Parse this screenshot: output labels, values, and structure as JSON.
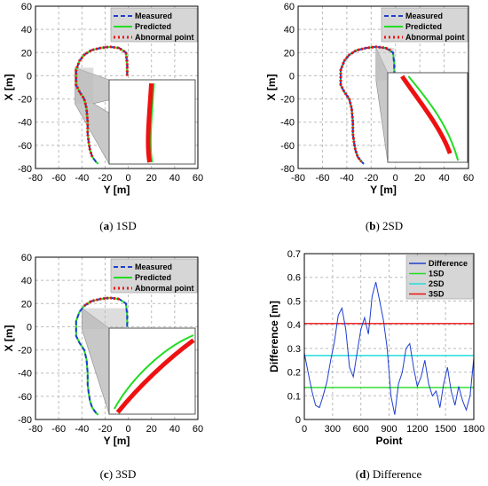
{
  "chart_data": [
    {
      "type": "line",
      "caption": {
        "letter": "a",
        "text": "1SD"
      },
      "xlabel": "Y [m]",
      "ylabel": "X [m]",
      "xlim": [
        -80,
        60
      ],
      "ylim": [
        -80,
        60
      ],
      "xticks": [
        -80,
        -60,
        -40,
        -20,
        0,
        20,
        40,
        60
      ],
      "yticks": [
        60,
        40,
        20,
        0,
        -20,
        -40,
        -60,
        -80
      ],
      "grid": true,
      "legend_position": "top-right",
      "legend": [
        "Measured",
        "Predicted",
        "Abnormal point"
      ],
      "colors": {
        "measured": "#1f3fcf",
        "predicted": "#22dd22",
        "abnormal": "#ee1111"
      },
      "series": [
        {
          "name": "Measured",
          "style": "dashed",
          "x": [
            -1,
            -1,
            -2,
            -8,
            -16,
            -24,
            -32,
            -38,
            -42,
            -45,
            -45,
            -42,
            -38,
            -36,
            -35,
            -35,
            -34,
            -33,
            -31,
            -28,
            -26
          ],
          "y": [
            0,
            10,
            20,
            24,
            25,
            24,
            22,
            18,
            13,
            5,
            -8,
            -14,
            -20,
            -28,
            -40,
            -50,
            -58,
            -64,
            -70,
            -74,
            -76
          ]
        },
        {
          "name": "Predicted",
          "x": [
            -1,
            -1,
            -2,
            -8,
            -16,
            -24,
            -32,
            -38,
            -42,
            -45,
            -45,
            -42,
            -38,
            -36,
            -35,
            -35,
            -34,
            -33,
            -31,
            -28,
            -26
          ],
          "y": [
            0,
            10,
            20,
            24,
            25,
            24,
            22,
            18,
            13,
            5,
            -8,
            -14,
            -20,
            -28,
            -40,
            -50,
            -58,
            -64,
            -70,
            -74,
            -76
          ]
        },
        {
          "name": "Abnormal point",
          "style": "dotted",
          "x": [
            -1,
            -1,
            -2,
            -8,
            -16,
            -24,
            -32,
            -38,
            -42,
            -45,
            -45,
            -42,
            -38,
            -36,
            -35,
            -35,
            -34,
            -33,
            -31
          ],
          "y": [
            0,
            10,
            20,
            24,
            25,
            24,
            22,
            18,
            13,
            5,
            -8,
            -14,
            -20,
            -28,
            -40,
            -50,
            -58,
            -64,
            -70
          ]
        }
      ]
    },
    {
      "type": "line",
      "caption": {
        "letter": "b",
        "text": "2SD"
      },
      "xlabel": "Y [m]",
      "ylabel": "X [m]",
      "xlim": [
        -80,
        60
      ],
      "ylim": [
        -80,
        60
      ],
      "xticks": [
        -80,
        -60,
        -40,
        -20,
        0,
        20,
        40,
        60
      ],
      "yticks": [
        60,
        40,
        20,
        0,
        -20,
        -40,
        -60,
        -80
      ],
      "grid": true,
      "legend_position": "top-right",
      "legend": [
        "Measured",
        "Predicted",
        "Abnormal point"
      ],
      "colors": {
        "measured": "#1f3fcf",
        "predicted": "#22dd22",
        "abnormal": "#ee1111"
      },
      "series": [
        {
          "name": "Measured",
          "style": "dashed",
          "x": [
            -1,
            -1,
            -2,
            -8,
            -16,
            -24,
            -32,
            -38,
            -42,
            -45,
            -45,
            -42,
            -38,
            -36,
            -35,
            -35,
            -34,
            -33,
            -31,
            -28,
            -26
          ],
          "y": [
            0,
            10,
            20,
            24,
            25,
            24,
            22,
            18,
            13,
            5,
            -8,
            -14,
            -20,
            -28,
            -40,
            -50,
            -58,
            -64,
            -70,
            -74,
            -76
          ]
        },
        {
          "name": "Predicted",
          "x": [
            -1,
            -1,
            -2,
            -8,
            -16,
            -24,
            -32,
            -38,
            -42,
            -45,
            -45,
            -42,
            -38,
            -36,
            -35,
            -35,
            -34,
            -33,
            -31,
            -28,
            -26
          ],
          "y": [
            0,
            10,
            20,
            24,
            25,
            24,
            22,
            18,
            13,
            5,
            -8,
            -14,
            -20,
            -28,
            -40,
            -50,
            -58,
            -64,
            -70,
            -74,
            -76
          ]
        },
        {
          "name": "Abnormal point",
          "style": "dotted",
          "x": [
            -4,
            -8,
            -16,
            -24,
            -32,
            -38,
            -42,
            -45,
            -45,
            -42,
            -38,
            -36,
            -35,
            -35,
            -34,
            -33,
            -31,
            -28
          ],
          "y": [
            22,
            24,
            25,
            24,
            22,
            18,
            13,
            5,
            -8,
            -14,
            -20,
            -28,
            -40,
            -50,
            -58,
            -64,
            -70,
            -74
          ]
        }
      ]
    },
    {
      "type": "line",
      "caption": {
        "letter": "c",
        "text": "3SD"
      },
      "xlabel": "Y [m]",
      "ylabel": "X [m]",
      "xlim": [
        -80,
        60
      ],
      "ylim": [
        -80,
        60
      ],
      "xticks": [
        -80,
        -60,
        -40,
        -20,
        0,
        20,
        40,
        60
      ],
      "yticks": [
        60,
        40,
        20,
        0,
        -20,
        -40,
        -60,
        -80
      ],
      "grid": true,
      "legend_position": "top-right",
      "legend": [
        "Measured",
        "Predicted",
        "Abnormal point"
      ],
      "colors": {
        "measured": "#1f3fcf",
        "predicted": "#22dd22",
        "abnormal": "#ee1111"
      },
      "series": [
        {
          "name": "Measured",
          "style": "dashed",
          "x": [
            -1,
            -1,
            -2,
            -8,
            -16,
            -24,
            -32,
            -38,
            -42,
            -45,
            -45,
            -42,
            -38,
            -36,
            -35,
            -35,
            -34,
            -33,
            -31,
            -28,
            -26
          ],
          "y": [
            0,
            10,
            20,
            24,
            25,
            24,
            22,
            18,
            13,
            5,
            -8,
            -14,
            -20,
            -28,
            -40,
            -50,
            -58,
            -64,
            -70,
            -74,
            -76
          ]
        },
        {
          "name": "Predicted",
          "x": [
            -1,
            -1,
            -2,
            -8,
            -16,
            -24,
            -32,
            -38,
            -42,
            -45,
            -45,
            -42,
            -38,
            -36,
            -35,
            -35,
            -34,
            -33,
            -31,
            -28,
            -26
          ],
          "y": [
            0,
            10,
            20,
            24,
            25,
            24,
            22,
            18,
            13,
            5,
            -8,
            -14,
            -20,
            -28,
            -40,
            -50,
            -58,
            -64,
            -70,
            -74,
            -76
          ]
        },
        {
          "name": "Abnormal point",
          "style": "dotted",
          "x": [
            -8,
            -16,
            -24,
            -32,
            -38
          ],
          "y": [
            24,
            25,
            24,
            22,
            18
          ]
        }
      ]
    },
    {
      "type": "line",
      "caption": {
        "letter": "d",
        "text": "Difference"
      },
      "xlabel": "Point",
      "ylabel": "Difference [m]",
      "xlim": [
        0,
        1800
      ],
      "ylim": [
        0,
        0.7
      ],
      "xticks": [
        0,
        300,
        600,
        900,
        1200,
        1500,
        1800
      ],
      "yticks": [
        0.7,
        0.6,
        0.5,
        0.4,
        0.3,
        0.2,
        0.1,
        0
      ],
      "grid": true,
      "legend_position": "top-right",
      "legend": [
        "Difference",
        "1SD",
        "2SD",
        "3SD"
      ],
      "colors": {
        "difference": "#1f3fcf",
        "1SD": "#22dd22",
        "2SD": "#22dddd",
        "3SD": "#ee1111"
      },
      "series": [
        {
          "name": "Difference",
          "x": [
            0,
            40,
            80,
            120,
            160,
            200,
            240,
            280,
            320,
            360,
            400,
            440,
            480,
            520,
            560,
            600,
            640,
            680,
            720,
            760,
            800,
            840,
            880,
            920,
            960,
            1000,
            1040,
            1080,
            1120,
            1160,
            1200,
            1240,
            1280,
            1320,
            1360,
            1400,
            1440,
            1480,
            1520,
            1560,
            1600,
            1640,
            1680,
            1720,
            1760,
            1800
          ],
          "y": [
            0.28,
            0.2,
            0.12,
            0.06,
            0.05,
            0.1,
            0.16,
            0.25,
            0.33,
            0.44,
            0.47,
            0.38,
            0.22,
            0.18,
            0.28,
            0.38,
            0.43,
            0.36,
            0.52,
            0.58,
            0.5,
            0.42,
            0.3,
            0.1,
            0.02,
            0.15,
            0.2,
            0.3,
            0.32,
            0.22,
            0.14,
            0.18,
            0.25,
            0.15,
            0.1,
            0.12,
            0.05,
            0.15,
            0.22,
            0.12,
            0.06,
            0.14,
            0.08,
            0.04,
            0.1,
            0.26
          ]
        },
        {
          "name": "1SD",
          "x": [
            0,
            1800
          ],
          "y": [
            0.135,
            0.135
          ]
        },
        {
          "name": "2SD",
          "x": [
            0,
            1800
          ],
          "y": [
            0.27,
            0.27
          ]
        },
        {
          "name": "3SD",
          "x": [
            0,
            1800
          ],
          "y": [
            0.405,
            0.405
          ]
        }
      ]
    }
  ]
}
